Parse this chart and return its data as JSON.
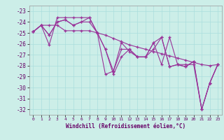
{
  "xlabel": "Windchill (Refroidissement éolien,°C)",
  "background_color": "#cceee8",
  "grid_color": "#aadddd",
  "line_color": "#993399",
  "ylim": [
    -32.5,
    -22.5
  ],
  "xlim": [
    -0.5,
    23.5
  ],
  "yticks": [
    -32,
    -31,
    -30,
    -29,
    -28,
    -27,
    -26,
    -25,
    -24,
    -23
  ],
  "xticks": [
    0,
    1,
    2,
    3,
    4,
    5,
    6,
    7,
    8,
    9,
    10,
    11,
    12,
    13,
    14,
    15,
    16,
    17,
    18,
    19,
    20,
    21,
    22,
    23
  ],
  "series1_y": [
    -24.9,
    -24.3,
    -26.1,
    -23.6,
    -23.6,
    -23.6,
    -23.6,
    -23.6,
    -25.0,
    -28.8,
    -28.5,
    -25.9,
    -26.7,
    -27.2,
    -27.2,
    -25.9,
    -27.9,
    -25.4,
    -27.9,
    -28.1,
    -27.6,
    -32.0,
    -29.6,
    -27.9
  ],
  "series2_y": [
    -24.9,
    -24.3,
    -24.3,
    -24.3,
    -24.8,
    -24.8,
    -24.8,
    -24.8,
    -25.0,
    -25.2,
    -25.5,
    -25.8,
    -26.1,
    -26.3,
    -26.5,
    -26.7,
    -26.9,
    -27.1,
    -27.3,
    -27.5,
    -27.7,
    -27.9,
    -28.0,
    -27.9
  ],
  "series3_y": [
    -24.9,
    -24.3,
    -25.2,
    -24.0,
    -23.8,
    -24.3,
    -24.0,
    -23.6,
    -25.0,
    -26.5,
    -28.8,
    -27.2,
    -26.5,
    -27.2,
    -27.2,
    -26.5,
    -25.4,
    -28.1,
    -27.9,
    -27.9,
    -27.9,
    -32.0,
    -29.6,
    -27.9
  ],
  "series4_y": [
    -24.9,
    -24.3,
    -25.2,
    -24.0,
    -23.8,
    -24.3,
    -24.0,
    -24.0,
    -25.0,
    -26.5,
    -28.5,
    -26.5,
    -26.5,
    -27.2,
    -27.2,
    -25.9,
    -25.4,
    -28.1,
    -27.9,
    -28.1,
    -27.6,
    -32.0,
    -29.6,
    -27.9
  ]
}
